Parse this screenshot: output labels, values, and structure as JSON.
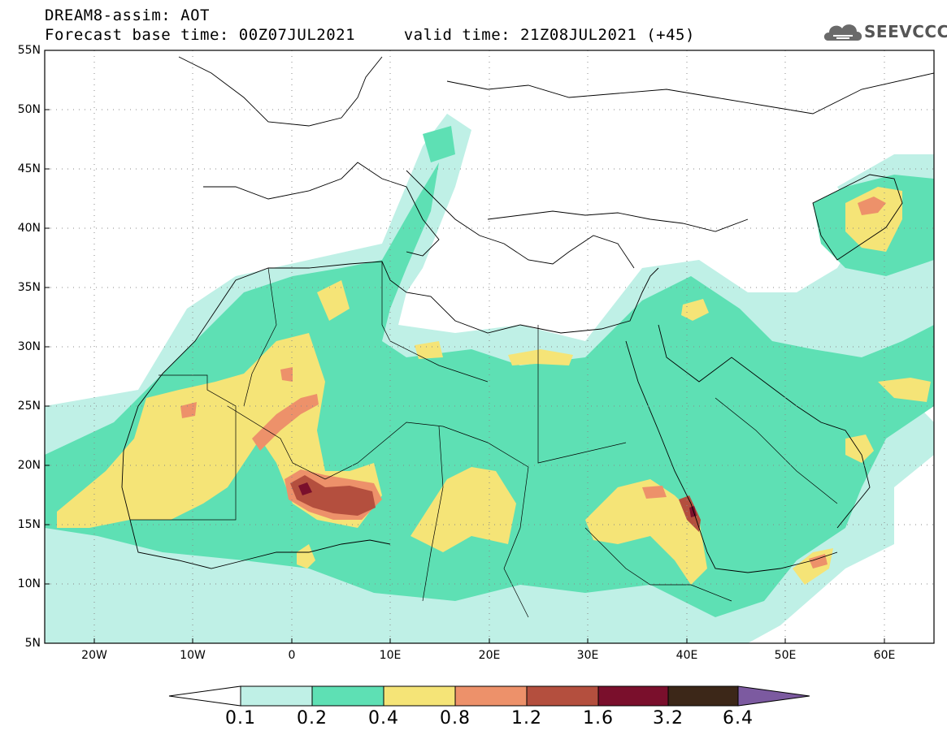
{
  "header": {
    "title_line1": "DREAM8-assim: AOT",
    "title_line2": "Forecast base time: 00Z07JUL2021     valid time: 21Z08JUL2021 (+45)"
  },
  "logo": {
    "text": "SEEVCCC",
    "icon": "cloud-icon"
  },
  "map": {
    "lon_range": [
      -25,
      65
    ],
    "lat_range": [
      5,
      55
    ],
    "lat_labels": [
      "55N",
      "50N",
      "45N",
      "40N",
      "35N",
      "30N",
      "25N",
      "20N",
      "15N",
      "10N",
      "5N"
    ],
    "lon_labels": [
      "20W",
      "10W",
      "0",
      "10E",
      "20E",
      "30E",
      "40E",
      "50E",
      "60E"
    ]
  },
  "legend": {
    "labels": [
      "0.1",
      "0.2",
      "0.4",
      "0.8",
      "1.2",
      "1.6",
      "3.2",
      "6.4"
    ],
    "colors": [
      "#ffffff",
      "#bff0e6",
      "#5ee0b4",
      "#f5e477",
      "#ed916a",
      "#b44f3e",
      "#7a0f2c",
      "#3c2718",
      "#7c5aa0"
    ]
  }
}
